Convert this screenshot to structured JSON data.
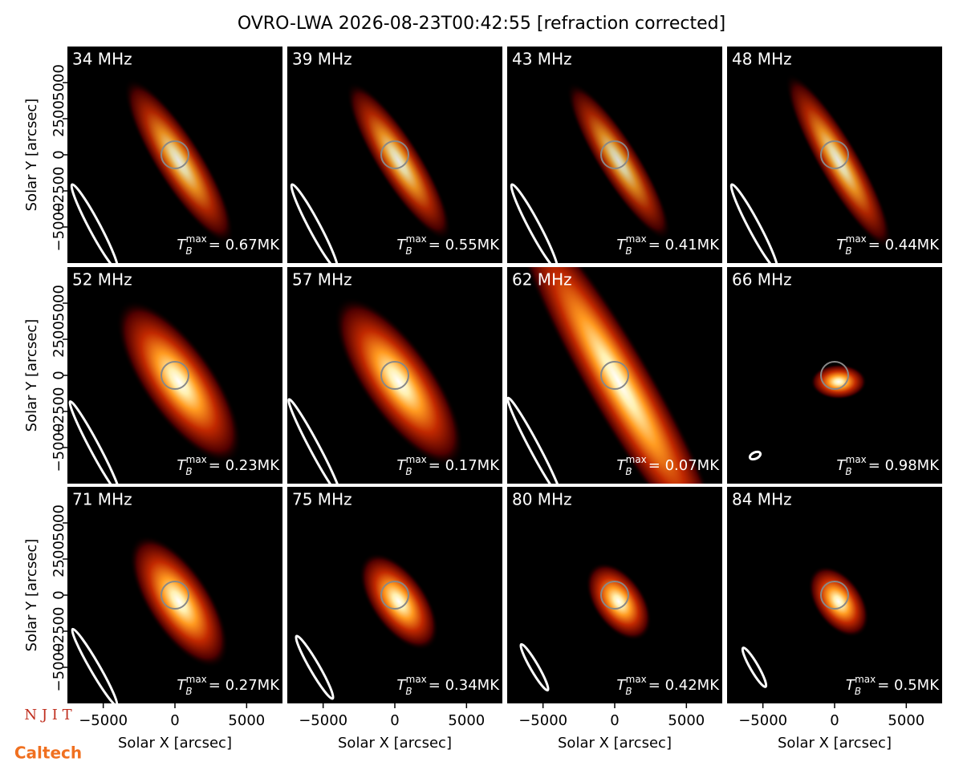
{
  "title": "OVRO-LWA 2026-08-23T00:42:55 [refraction corrected]",
  "tb_symbol": "T",
  "tb_sub": "B",
  "tb_sup": "max",
  "logos": [
    "N J I T",
    "Caltech"
  ],
  "chart_data": [
    {
      "type": "image",
      "title": "34 MHz",
      "annotation": "= 0.67MK",
      "xlim": [
        -7500,
        7500
      ],
      "ylim": [
        -7500,
        7500
      ],
      "ylabel": "Solar Y [arcsec]",
      "yticks": [
        {
          "value": -5000,
          "label": "−5000"
        },
        {
          "value": -2500,
          "label": "−2500"
        },
        0,
        2500,
        5000
      ]
    },
    {
      "type": "image",
      "title": "39 MHz",
      "annotation": "= 0.55MK",
      "xlim": [
        -7500,
        7500
      ],
      "ylim": [
        -7500,
        7500
      ]
    },
    {
      "type": "image",
      "title": "43 MHz",
      "annotation": "= 0.41MK",
      "xlim": [
        -7500,
        7500
      ],
      "ylim": [
        -7500,
        7500
      ]
    },
    {
      "type": "image",
      "title": "48 MHz",
      "annotation": "= 0.44MK",
      "xlim": [
        -7500,
        7500
      ],
      "ylim": [
        -7500,
        7500
      ]
    },
    {
      "type": "image",
      "title": "52 MHz",
      "annotation": "= 0.23MK",
      "xlim": [
        -7500,
        7500
      ],
      "ylim": [
        -7500,
        7500
      ],
      "ylabel": "Solar Y [arcsec]",
      "yticks": [
        {
          "value": -5000,
          "label": "−5000"
        },
        {
          "value": -2500,
          "label": "−2500"
        },
        0,
        2500,
        5000
      ]
    },
    {
      "type": "image",
      "title": "57 MHz",
      "annotation": "= 0.17MK",
      "xlim": [
        -7500,
        7500
      ],
      "ylim": [
        -7500,
        7500
      ]
    },
    {
      "type": "image",
      "title": "62 MHz",
      "annotation": "= 0.07MK",
      "xlim": [
        -7500,
        7500
      ],
      "ylim": [
        -7500,
        7500
      ]
    },
    {
      "type": "image",
      "title": "66 MHz",
      "annotation": "= 0.98MK",
      "xlim": [
        -7500,
        7500
      ],
      "ylim": [
        -7500,
        7500
      ]
    },
    {
      "type": "image",
      "title": "71 MHz",
      "annotation": "= 0.27MK",
      "xlim": [
        -7500,
        7500
      ],
      "ylim": [
        -7500,
        7500
      ],
      "ylabel": "Solar Y [arcsec]",
      "xlabel": "Solar X [arcsec]",
      "yticks": [
        {
          "value": -5000,
          "label": "−5000"
        },
        {
          "value": -2500,
          "label": "−2500"
        },
        0,
        2500,
        5000
      ],
      "xticks": [
        {
          "value": -5000,
          "label": "−5000"
        },
        0,
        5000
      ]
    },
    {
      "type": "image",
      "title": "75 MHz",
      "annotation": "= 0.34MK",
      "xlim": [
        -7500,
        7500
      ],
      "ylim": [
        -7500,
        7500
      ],
      "xlabel": "Solar X [arcsec]",
      "xticks": [
        {
          "value": -5000,
          "label": "−5000"
        },
        0,
        5000
      ]
    },
    {
      "type": "image",
      "title": "80 MHz",
      "annotation": "= 0.42MK",
      "xlim": [
        -7500,
        7500
      ],
      "ylim": [
        -7500,
        7500
      ],
      "xlabel": "Solar X [arcsec]",
      "xticks": [
        {
          "value": -5000,
          "label": "−5000"
        },
        0,
        5000
      ]
    },
    {
      "type": "image",
      "title": "84 MHz",
      "annotation": "= 0.5MK",
      "xlim": [
        -7500,
        7500
      ],
      "ylim": [
        -7500,
        7500
      ],
      "xlabel": "Solar X [arcsec]",
      "xticks": [
        {
          "value": -5000,
          "label": "−5000"
        },
        0,
        5000
      ]
    }
  ]
}
